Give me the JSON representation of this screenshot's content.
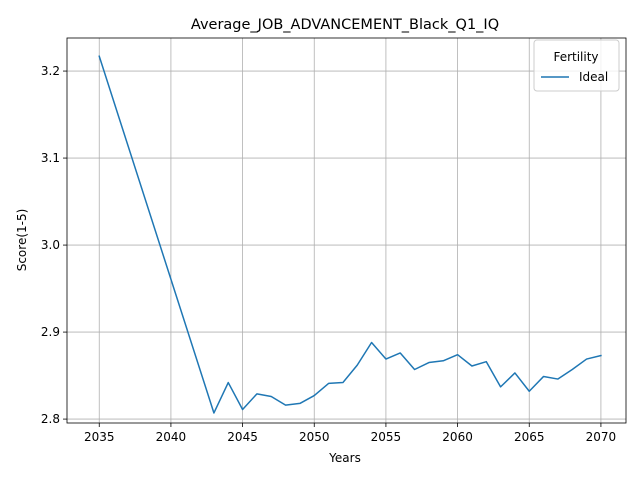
{
  "chart_data": {
    "type": "line",
    "title": "Average_JOB_ADVANCEMENT_Black_Q1_IQ",
    "xlabel": "Years",
    "ylabel": "Score(1-5)",
    "xlim": [
      2032.75,
      2071.75
    ],
    "ylim": [
      2.7955,
      3.238
    ],
    "xticks": [
      2035,
      2040,
      2045,
      2050,
      2055,
      2060,
      2065,
      2070
    ],
    "yticks": [
      2.8,
      2.9,
      3.0,
      3.1,
      3.2
    ],
    "ytick_labels": [
      "2.8",
      "2.9",
      "3.0",
      "3.1",
      "3.2"
    ],
    "grid": true,
    "legend": {
      "title": "Fertility",
      "placement": "top-right"
    },
    "series": [
      {
        "name": "Ideal",
        "color": "#1f77b4",
        "x": [
          2035,
          2043,
          2044,
          2045,
          2046,
          2047,
          2048,
          2049,
          2050,
          2051,
          2052,
          2053,
          2054,
          2055,
          2056,
          2057,
          2058,
          2059,
          2060,
          2061,
          2062,
          2063,
          2064,
          2065,
          2066,
          2067,
          2068,
          2069,
          2070
        ],
        "y": [
          3.217,
          2.807,
          2.842,
          2.811,
          2.829,
          2.826,
          2.816,
          2.818,
          2.827,
          2.841,
          2.842,
          2.862,
          2.888,
          2.869,
          2.876,
          2.857,
          2.865,
          2.867,
          2.874,
          2.861,
          2.866,
          2.837,
          2.853,
          2.832,
          2.849,
          2.846,
          2.857,
          2.869,
          2.873
        ]
      }
    ]
  }
}
